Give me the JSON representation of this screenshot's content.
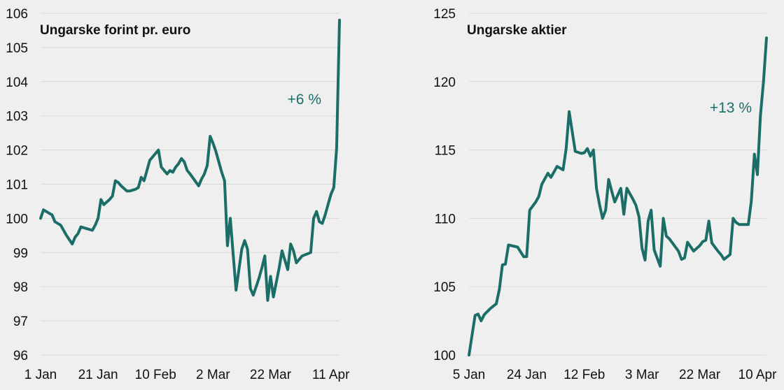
{
  "colors": {
    "background": "#efefef",
    "line": "#1b6e67",
    "grid": "#d8d8d8",
    "text": "#111111"
  },
  "chart_data": [
    {
      "type": "line",
      "title": "Ungarske forint pr. euro",
      "xlabel": "",
      "ylabel": "",
      "ylim": [
        96,
        106
      ],
      "yticks": [
        96,
        97,
        98,
        99,
        100,
        101,
        102,
        103,
        104,
        105,
        106
      ],
      "xlim": [
        0,
        104
      ],
      "x_tick_labels": [
        "1 Jan",
        "21 Jan",
        "10 Feb",
        "2 Mar",
        "22 Mar",
        "11 Apr"
      ],
      "x_tick_positions": [
        0,
        20,
        40,
        60,
        80,
        101
      ],
      "grid": true,
      "annotation": "+6 %",
      "series": [
        {
          "x": [
            0,
            1,
            3,
            4,
            5,
            6,
            7,
            9,
            11,
            12,
            13,
            14,
            16,
            18,
            19,
            20,
            21,
            22,
            24,
            25,
            26,
            27,
            28,
            30,
            31,
            33,
            34,
            35,
            36,
            38,
            40,
            41,
            42,
            44,
            45,
            46,
            47,
            48,
            49,
            50,
            51,
            52,
            55,
            56,
            57,
            58,
            59,
            60,
            61,
            62,
            63,
            64,
            65,
            66,
            68,
            69,
            70,
            71,
            72,
            73,
            74,
            75,
            76,
            77,
            78,
            79,
            80,
            81,
            83,
            84,
            86,
            87,
            88,
            89,
            90,
            91,
            94,
            95,
            96,
            97,
            98,
            99,
            100,
            101,
            102,
            103,
            104
          ],
          "y": [
            100.0,
            100.25,
            100.15,
            100.1,
            99.9,
            99.85,
            99.8,
            99.5,
            99.25,
            99.45,
            99.55,
            99.75,
            99.7,
            99.65,
            99.8,
            100.0,
            100.55,
            100.4,
            100.55,
            100.65,
            101.1,
            101.05,
            100.95,
            100.8,
            100.8,
            100.85,
            100.9,
            101.2,
            101.1,
            101.7,
            101.9,
            102.0,
            101.5,
            101.3,
            101.4,
            101.35,
            101.5,
            101.6,
            101.75,
            101.65,
            101.4,
            101.3,
            100.95,
            101.15,
            101.3,
            101.55,
            102.4,
            102.2,
            101.95,
            101.65,
            101.35,
            101.1,
            99.2,
            100.0,
            97.9,
            98.5,
            99.1,
            99.35,
            99.1,
            97.95,
            97.75,
            98.0,
            98.25,
            98.55,
            98.9,
            97.6,
            98.3,
            97.7,
            98.55,
            99.05,
            98.5,
            99.25,
            99.05,
            98.7,
            98.8,
            98.9,
            99.0,
            100.0,
            100.2,
            99.9,
            99.85,
            100.1,
            100.4,
            100.7,
            100.9,
            102.05,
            105.8
          ]
        }
      ]
    },
    {
      "type": "line",
      "title": "Ungarske aktier",
      "xlabel": "",
      "ylabel": "",
      "ylim": [
        100,
        125
      ],
      "yticks": [
        100,
        105,
        110,
        115,
        120,
        125
      ],
      "xlim": [
        0,
        98
      ],
      "x_tick_labels": [
        "5 Jan",
        "24 Jan",
        "12 Feb",
        "3 Mar",
        "22 Mar",
        "10 Apr"
      ],
      "x_tick_positions": [
        0,
        19,
        38,
        57,
        76,
        95
      ],
      "grid": true,
      "annotation": "+13 %",
      "series": [
        {
          "x": [
            0,
            2,
            3,
            4,
            5,
            7,
            9,
            10,
            11,
            12,
            13,
            14,
            15,
            16,
            18,
            19,
            20,
            22,
            23,
            24,
            25,
            26,
            27,
            29,
            31,
            32,
            33,
            35,
            37,
            38,
            39,
            40,
            41,
            42,
            43,
            44,
            45,
            46,
            47,
            48,
            50,
            51,
            52,
            54,
            55,
            56,
            57,
            58,
            59,
            60,
            61,
            63,
            64,
            65,
            66,
            67,
            69,
            70,
            71,
            72,
            74,
            76,
            77,
            78,
            79,
            80,
            82,
            83,
            84,
            86,
            87,
            88,
            89,
            90,
            91,
            92,
            93,
            94,
            95,
            96,
            97,
            98
          ],
          "y": [
            100.0,
            102.9,
            103.0,
            102.5,
            102.95,
            103.4,
            103.75,
            104.8,
            106.6,
            106.65,
            108.05,
            108.0,
            107.95,
            107.9,
            107.2,
            107.2,
            110.6,
            111.2,
            111.6,
            112.5,
            112.9,
            113.3,
            113.0,
            113.8,
            113.55,
            115.1,
            117.8,
            114.9,
            114.75,
            114.8,
            115.1,
            114.55,
            115.0,
            112.2,
            111.0,
            110.0,
            110.6,
            112.85,
            112.0,
            111.2,
            112.2,
            110.3,
            112.2,
            111.4,
            110.95,
            110.1,
            107.8,
            106.95,
            109.8,
            110.6,
            107.7,
            106.5,
            110.0,
            108.7,
            108.5,
            108.2,
            107.6,
            107.0,
            107.1,
            108.25,
            107.6,
            108.0,
            108.3,
            108.4,
            109.8,
            108.2,
            107.6,
            107.35,
            107.0,
            107.35,
            110.0,
            109.7,
            109.55,
            109.55,
            109.55,
            109.55,
            111.25,
            114.7,
            113.2,
            117.5,
            120.0,
            123.2
          ]
        }
      ]
    }
  ]
}
